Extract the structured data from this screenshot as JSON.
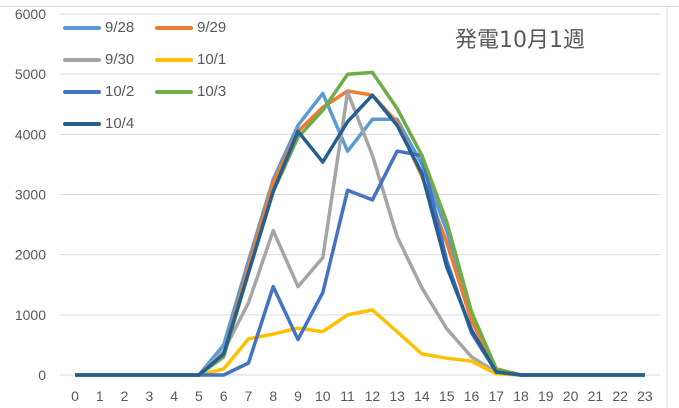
{
  "chart_data": {
    "type": "line",
    "title": "発電10月1週",
    "xlabel": "",
    "ylabel": "",
    "ylim": [
      0,
      6000
    ],
    "yticks": [
      0,
      1000,
      2000,
      3000,
      4000,
      5000,
      6000
    ],
    "x": [
      0,
      1,
      2,
      3,
      4,
      5,
      6,
      7,
      8,
      9,
      10,
      11,
      12,
      13,
      14,
      15,
      16,
      17,
      18,
      19,
      20,
      21,
      22,
      23
    ],
    "grid": true,
    "legend_position": "top-left",
    "series": [
      {
        "name": "9/28",
        "color": "#5b9bd5",
        "values": [
          0,
          0,
          0,
          0,
          0,
          0,
          500,
          1900,
          3250,
          4150,
          4680,
          3720,
          4250,
          4250,
          3500,
          2400,
          1000,
          100,
          0,
          0,
          0,
          0,
          0,
          0
        ]
      },
      {
        "name": "9/29",
        "color": "#ed7d31",
        "values": [
          0,
          0,
          0,
          0,
          0,
          0,
          350,
          1800,
          3200,
          4050,
          4450,
          4720,
          4650,
          4200,
          3300,
          2200,
          900,
          100,
          0,
          0,
          0,
          0,
          0,
          0
        ]
      },
      {
        "name": "9/30",
        "color": "#a5a5a5",
        "values": [
          0,
          0,
          0,
          0,
          0,
          0,
          400,
          1200,
          2400,
          1470,
          1950,
          4700,
          3650,
          2300,
          1450,
          770,
          300,
          50,
          0,
          0,
          0,
          0,
          0,
          0
        ]
      },
      {
        "name": "10/1",
        "color": "#ffc000",
        "values": [
          0,
          0,
          0,
          0,
          0,
          0,
          100,
          600,
          680,
          780,
          720,
          1000,
          1080,
          720,
          350,
          280,
          230,
          20,
          0,
          0,
          0,
          0,
          0,
          0
        ]
      },
      {
        "name": "10/2",
        "color": "#4472c4",
        "values": [
          0,
          0,
          0,
          0,
          0,
          0,
          0,
          200,
          1470,
          590,
          1370,
          3070,
          2910,
          3720,
          3650,
          1900,
          700,
          50,
          0,
          0,
          0,
          0,
          0,
          0
        ]
      },
      {
        "name": "10/3",
        "color": "#70ad47",
        "values": [
          0,
          0,
          0,
          0,
          0,
          0,
          300,
          1700,
          3050,
          3950,
          4400,
          5000,
          5030,
          4430,
          3650,
          2550,
          1050,
          100,
          0,
          0,
          0,
          0,
          0,
          0
        ]
      },
      {
        "name": "10/4",
        "color": "#255e91",
        "values": [
          0,
          0,
          0,
          0,
          0,
          0,
          350,
          1700,
          3050,
          4050,
          3540,
          4210,
          4650,
          4150,
          3350,
          1800,
          750,
          50,
          0,
          0,
          0,
          0,
          0,
          0
        ]
      }
    ]
  }
}
